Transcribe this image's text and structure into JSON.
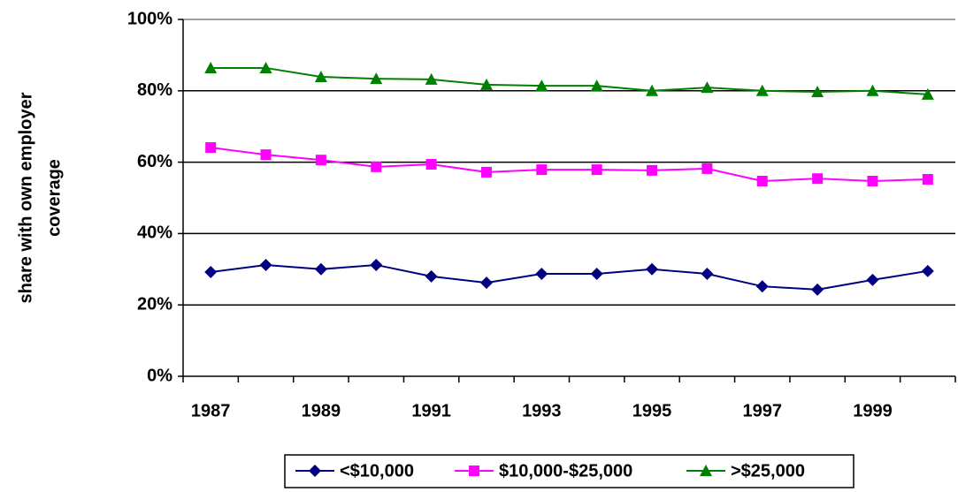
{
  "chart_data": {
    "type": "line",
    "ylabel": [
      "share with own employer",
      "coverage"
    ],
    "categories": [
      "1987",
      null,
      "1989",
      null,
      "1991",
      null,
      "1993",
      null,
      "1995",
      null,
      "1997",
      null,
      "1999",
      null
    ],
    "series": [
      {
        "name": "<$10,000",
        "color": "#000080",
        "marker": "diamond",
        "values": [
          29.2,
          31.2,
          30.0,
          31.2,
          28.0,
          26.2,
          28.7,
          28.7,
          30.0,
          28.7,
          25.2,
          24.3,
          27.0,
          29.5
        ]
      },
      {
        "name": "$10,000-$25,000",
        "color": "#ff00ff",
        "marker": "square",
        "values": [
          64.1,
          62.1,
          60.6,
          58.7,
          59.4,
          57.2,
          57.9,
          57.9,
          57.7,
          58.2,
          54.7,
          55.4,
          54.7,
          55.2
        ]
      },
      {
        "name": ">$25,000",
        "color": "#008000",
        "marker": "triangle",
        "values": [
          86.4,
          86.4,
          83.9,
          83.4,
          83.2,
          81.7,
          81.4,
          81.4,
          80.0,
          80.9,
          80.0,
          79.7,
          80.0,
          79.0
        ]
      }
    ],
    "ylim": [
      0,
      100
    ],
    "yticks": [
      {
        "value": 0,
        "label": "0%"
      },
      {
        "value": 20,
        "label": "20%"
      },
      {
        "value": 40,
        "label": "40%"
      },
      {
        "value": 60,
        "label": "60%"
      },
      {
        "value": 80,
        "label": "80%"
      },
      {
        "value": 100,
        "label": "100%"
      }
    ],
    "grid": true,
    "legend": "bottom"
  }
}
